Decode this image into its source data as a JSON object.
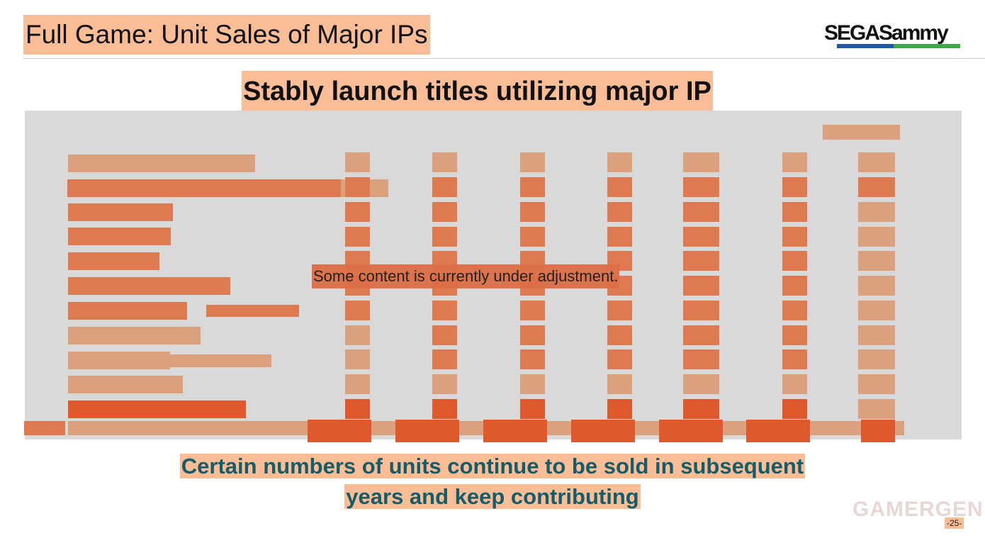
{
  "slide": {
    "title": "Full Game: Unit Sales of Major IPs",
    "headline": "Stably launch titles utilizing major IP",
    "notice": "Some content is currently under adjustment.",
    "footer_line1": "Certain numbers of units continue to be sold in subsequent",
    "footer_line2": "years and keep contributing",
    "page_number": "-25-"
  },
  "logo": {
    "text": "SEGASammy"
  },
  "watermark": {
    "text": "GAMERGEN"
  },
  "colors": {
    "highlight": "#fbbd95",
    "panel": "#d9d9d9",
    "block_light": "#dba07e",
    "block_mid": "#dd7a4f",
    "block_dark": "#de5a2c",
    "footer_text": "#145c6a"
  }
}
